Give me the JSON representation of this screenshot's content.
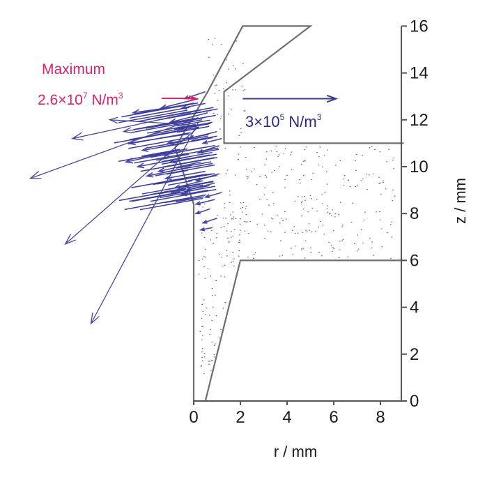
{
  "chart_data": {
    "type": "vector-field",
    "title": "",
    "xlabel": "r / mm",
    "ylabel": "z / mm",
    "xlim": [
      0,
      9
    ],
    "ylim": [
      0,
      16
    ],
    "x_ticks": [
      "0",
      "2",
      "4",
      "6",
      "8"
    ],
    "x_tick_values": [
      0,
      2,
      4,
      6,
      8
    ],
    "y_ticks": [
      "0",
      "2",
      "4",
      "6",
      "8",
      "10",
      "12",
      "14",
      "16"
    ],
    "y_tick_values": [
      0,
      2,
      4,
      6,
      8,
      10,
      12,
      14,
      16
    ],
    "annotations": {
      "maximum_label": "Maximum",
      "maximum_value_prefix": "2.6×10",
      "maximum_value_exp": "7",
      "maximum_value_unit": " N/m",
      "maximum_value_unit_exp": "3",
      "scale_value_prefix": "3×10",
      "scale_value_exp": "5",
      "scale_value_unit": " N/m",
      "scale_value_unit_exp": "3"
    },
    "scale_arrow": {
      "from": [
        2.1,
        12.9
      ],
      "to": [
        6.1,
        12.9
      ]
    },
    "geometry": {
      "inner_boundary": [
        [
          0.5,
          0
        ],
        [
          2,
          6
        ],
        [
          9,
          6
        ]
      ],
      "outer_boundary": [
        [
          0,
          0
        ],
        [
          0,
          8.4
        ],
        [
          -0.8,
          10.8
        ],
        [
          0.6,
          13.2
        ],
        [
          2.1,
          16
        ],
        [
          5,
          16
        ],
        [
          1.3,
          13.2
        ],
        [
          1.3,
          11
        ],
        [
          9,
          11
        ]
      ]
    },
    "vectors": [
      {
        "from": [
          0.2,
          12.1
        ],
        "to": [
          -7.0,
          9.5
        ]
      },
      {
        "from": [
          0.1,
          11.6
        ],
        "to": [
          -5.5,
          6.7
        ]
      },
      {
        "from": [
          0.2,
          11.9
        ],
        "to": [
          -4.4,
          3.3
        ]
      },
      {
        "from": [
          -0.1,
          12.3
        ],
        "to": [
          -5.2,
          11.2
        ]
      },
      {
        "from": [
          -0.3,
          11.8
        ],
        "to": [
          -3.6,
          12.0
        ]
      },
      {
        "from": [
          0.0,
          12.0
        ],
        "to": [
          -3.0,
          11.5
        ]
      },
      {
        "from": [
          -0.5,
          12.6
        ],
        "to": [
          -2.6,
          12.3
        ]
      },
      {
        "from": [
          -0.2,
          11.4
        ],
        "to": [
          -2.8,
          11.0
        ]
      },
      {
        "from": [
          -0.4,
          11.0
        ],
        "to": [
          -2.2,
          10.7
        ]
      },
      {
        "from": [
          -0.6,
          10.7
        ],
        "to": [
          -2.9,
          10.2
        ]
      },
      {
        "from": [
          -0.3,
          10.4
        ],
        "to": [
          -2.4,
          10.0
        ]
      },
      {
        "from": [
          -0.1,
          10.0
        ],
        "to": [
          -2.0,
          9.6
        ]
      },
      {
        "from": [
          0.3,
          10.2
        ],
        "to": [
          -1.5,
          9.8
        ]
      },
      {
        "from": [
          0.5,
          9.8
        ],
        "to": [
          -1.2,
          9.5
        ]
      },
      {
        "from": [
          0.7,
          10.5
        ],
        "to": [
          -1.0,
          10.2
        ]
      },
      {
        "from": [
          0.4,
          9.4
        ],
        "to": [
          -0.8,
          9.1
        ]
      },
      {
        "from": [
          0.6,
          9.0
        ],
        "to": [
          -0.5,
          8.8
        ]
      },
      {
        "from": [
          0.9,
          9.3
        ],
        "to": [
          -0.3,
          9.0
        ]
      },
      {
        "from": [
          1.1,
          9.7
        ],
        "to": [
          0.1,
          9.4
        ]
      },
      {
        "from": [
          0.2,
          12.9
        ],
        "to": [
          -1.4,
          12.5
        ]
      },
      {
        "from": [
          0.6,
          12.3
        ],
        "to": [
          -1.0,
          11.9
        ]
      },
      {
        "from": [
          0.8,
          11.9
        ],
        "to": [
          -0.6,
          11.6
        ]
      },
      {
        "from": [
          1.0,
          11.5
        ],
        "to": [
          -0.2,
          11.2
        ]
      },
      {
        "from": [
          1.1,
          10.9
        ],
        "to": [
          0.2,
          10.6
        ]
      },
      {
        "from": [
          0.5,
          13.2
        ],
        "to": [
          -0.4,
          12.9
        ]
      },
      {
        "from": [
          0.9,
          8.6
        ],
        "to": [
          0.1,
          8.4
        ]
      },
      {
        "from": [
          0.7,
          8.2
        ],
        "to": [
          0.1,
          8.0
        ]
      },
      {
        "from": [
          1.0,
          7.8
        ],
        "to": [
          0.4,
          7.6
        ]
      },
      {
        "from": [
          0.8,
          7.4
        ],
        "to": [
          0.3,
          7.3
        ]
      },
      {
        "from": [
          1.2,
          8.9
        ],
        "to": [
          0.5,
          8.7
        ]
      },
      {
        "from": [
          0.5,
          12.7
        ],
        "to": [
          -0.5,
          12.5
        ]
      },
      {
        "from": [
          1.2,
          11.2
        ],
        "to": [
          0.4,
          11.0
        ]
      },
      {
        "from": [
          0.6,
          11.3
        ],
        "to": [
          -1.1,
          11.0
        ]
      },
      {
        "from": [
          0.3,
          10.8
        ],
        "to": [
          -1.3,
          10.5
        ]
      }
    ]
  }
}
